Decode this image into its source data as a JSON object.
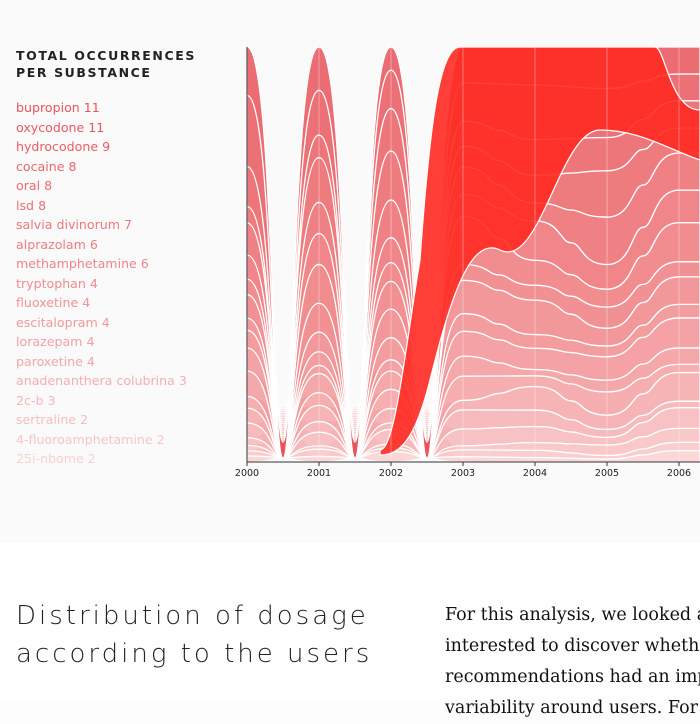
{
  "legend": {
    "title_line1": "TOTAL OCCURRENCES",
    "title_line2": "PER SUBSTANCE"
  },
  "chart_data": {
    "type": "area",
    "title": "TOTAL OCCURRENCES PER SUBSTANCE",
    "xlabel": "",
    "ylabel": "",
    "x": [
      "2000",
      "2001",
      "2002",
      "2003",
      "2004",
      "2005",
      "2006"
    ],
    "grid": false,
    "legend_position": "left",
    "series": [
      {
        "name": "bupropion",
        "total": 11,
        "color": "#e8545b"
      },
      {
        "name": "oxycodone",
        "total": 11,
        "color": "#e8585e"
      },
      {
        "name": "hydrocodone",
        "total": 9,
        "color": "#ea5e63"
      },
      {
        "name": "cocaine",
        "total": 8,
        "color": "#eb6569"
      },
      {
        "name": "oral",
        "total": 8,
        "color": "#ec6b6f"
      },
      {
        "name": "lsd",
        "total": 8,
        "color": "#ed7175"
      },
      {
        "name": "salvia divinorum",
        "total": 7,
        "color": "#ee787b"
      },
      {
        "name": "alprazolam",
        "total": 6,
        "color": "#ef7e81"
      },
      {
        "name": "methamphetamine",
        "total": 6,
        "color": "#f08588"
      },
      {
        "name": "tryptophan",
        "total": 4,
        "color": "#f18c8e"
      },
      {
        "name": "fluoxetine",
        "total": 4,
        "color": "#f29295"
      },
      {
        "name": "escitalopram",
        "total": 4,
        "color": "#f3999b"
      },
      {
        "name": "lorazepam",
        "total": 4,
        "color": "#f4a0a2"
      },
      {
        "name": "paroxetine",
        "total": 4,
        "color": "#f5a7a9"
      },
      {
        "name": "anadenanthera colubrina",
        "total": 3,
        "color": "#f6afb1"
      },
      {
        "name": "2c-b",
        "total": 3,
        "color": "#f7b6b8"
      },
      {
        "name": "sertraline",
        "total": 2,
        "color": "#f8bec0"
      },
      {
        "name": "4-fluoroamphetamine",
        "total": 2,
        "color": "#f9c6c7"
      },
      {
        "name": "25i-nbome",
        "total": 2,
        "color": "#fad0d1"
      }
    ]
  },
  "article": {
    "heading": "Distribution of dosage according to the users",
    "paragraph_lines": [
      "For this analysis, we looked at",
      "interested to discover whether",
      "recommendations had an imp",
      "variability around users. For"
    ]
  }
}
